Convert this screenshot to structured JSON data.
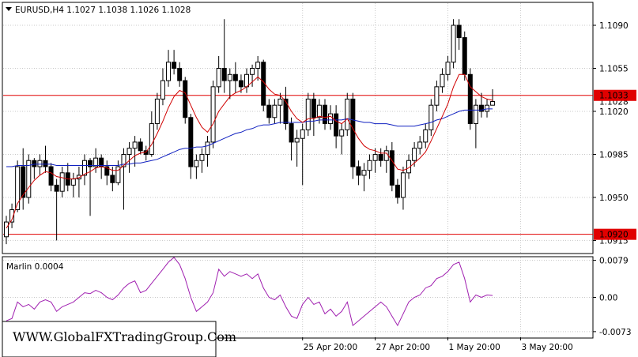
{
  "symbol_header": "EURUSD,H4  1.1027 1.1038 1.1026 1.1028",
  "indicator_label": "Marlin 0.0004",
  "watermark": "WWW.GlobalFXTradingGroup.Com",
  "colors": {
    "background": "#ffffff",
    "grid": "#c8c8c8",
    "candle": "#000000",
    "ma_fast": "#d00000",
    "ma_slow": "#1020c0",
    "level_line": "#e00000",
    "level_label_bg": "#e00000",
    "level_label_text": "#ffffff",
    "oscillator": "#a020b0"
  },
  "price_axis": {
    "ticks": [
      "1.1090",
      "1.1055",
      "1.1020",
      "1.0985",
      "1.0950",
      "1.0915"
    ],
    "range": [
      1.0905,
      1.1108
    ]
  },
  "levels": [
    {
      "price": 1.1033,
      "label": "1.1033"
    },
    {
      "price": 1.092,
      "label": "1.0920"
    }
  ],
  "current_price_label": "1.1028",
  "oscillator_axis": {
    "ticks": [
      "0.0079",
      "0.00",
      "-0.0073"
    ],
    "range": [
      -0.0085,
      0.0085
    ]
  },
  "time_axis": {
    "labels": [
      {
        "text": "25 Apr 20:00",
        "bar": 53
      },
      {
        "text": "27 Apr 20:00",
        "bar": 66
      },
      {
        "text": "1 May 20:00",
        "bar": 79
      },
      {
        "text": "3 May 20:00",
        "bar": 92
      }
    ]
  },
  "chart_data": {
    "type": "candlestick",
    "candles": [
      [
        1.0918,
        1.0935,
        1.0912,
        1.093
      ],
      [
        1.093,
        1.0945,
        1.0925,
        1.094
      ],
      [
        1.094,
        1.098,
        1.0938,
        1.0975
      ],
      [
        1.0975,
        1.099,
        1.094,
        1.095
      ],
      [
        1.095,
        1.0985,
        1.0945,
        1.098
      ],
      [
        1.098,
        1.0982,
        1.0965,
        1.0975
      ],
      [
        1.0975,
        1.0985,
        1.0968,
        1.098
      ],
      [
        1.098,
        1.0992,
        1.097,
        1.0975
      ],
      [
        1.0975,
        1.0978,
        1.0955,
        1.096
      ],
      [
        1.096,
        1.0965,
        1.0915,
        1.0955
      ],
      [
        1.0955,
        1.0975,
        1.095,
        1.097
      ],
      [
        1.097,
        1.0978,
        1.0955,
        1.096
      ],
      [
        1.096,
        1.097,
        1.095,
        1.0965
      ],
      [
        1.0965,
        1.0975,
        1.095,
        1.0968
      ],
      [
        1.0968,
        1.0985,
        1.096,
        1.098
      ],
      [
        1.098,
        1.0982,
        1.0935,
        1.0975
      ],
      [
        1.0975,
        1.099,
        1.097,
        1.0982
      ],
      [
        1.0982,
        1.0985,
        1.0965,
        1.0975
      ],
      [
        1.0975,
        1.098,
        1.096,
        1.0968
      ],
      [
        1.0968,
        1.0975,
        1.0955,
        1.0962
      ],
      [
        1.0962,
        1.098,
        1.096,
        1.0975
      ],
      [
        1.0975,
        1.099,
        1.094,
        1.0985
      ],
      [
        1.0985,
        1.0995,
        1.097,
        1.099
      ],
      [
        1.099,
        1.1,
        1.0975,
        1.0995
      ],
      [
        1.0995,
        1.0998,
        1.0985,
        1.0988
      ],
      [
        1.0988,
        1.0992,
        1.098,
        1.0985
      ],
      [
        1.0985,
        1.102,
        1.0983,
        1.101
      ],
      [
        1.101,
        1.1035,
        1.1005,
        1.103
      ],
      [
        1.103,
        1.1055,
        1.1025,
        1.1045
      ],
      [
        1.1045,
        1.107,
        1.104,
        1.106
      ],
      [
        1.106,
        1.107,
        1.105,
        1.1055
      ],
      [
        1.1055,
        1.106,
        1.104,
        1.1045
      ],
      [
        1.1045,
        1.1048,
        1.101,
        1.1015
      ],
      [
        1.1015,
        1.1018,
        1.0965,
        1.0975
      ],
      [
        1.0975,
        1.0985,
        1.0965,
        1.098
      ],
      [
        1.098,
        1.099,
        1.097,
        1.0985
      ],
      [
        1.0985,
        1.1,
        1.0975,
        1.0995
      ],
      [
        1.0995,
        1.1045,
        1.099,
        1.104
      ],
      [
        1.104,
        1.1065,
        1.1035,
        1.1055
      ],
      [
        1.1055,
        1.1095,
        1.1035,
        1.1045
      ],
      [
        1.1045,
        1.1055,
        1.103,
        1.105
      ],
      [
        1.105,
        1.106,
        1.1035,
        1.1045
      ],
      [
        1.1045,
        1.105,
        1.1035,
        1.104
      ],
      [
        1.104,
        1.1055,
        1.1035,
        1.105
      ],
      [
        1.105,
        1.1058,
        1.104,
        1.1055
      ],
      [
        1.1055,
        1.1065,
        1.1045,
        1.106
      ],
      [
        1.106,
        1.1062,
        1.102,
        1.1025
      ],
      [
        1.1025,
        1.103,
        1.101,
        1.1015
      ],
      [
        1.1015,
        1.103,
        1.101,
        1.1025
      ],
      [
        1.1025,
        1.1035,
        1.101,
        1.103
      ],
      [
        1.103,
        1.104,
        1.1005,
        1.101
      ],
      [
        1.101,
        1.1015,
        1.098,
        1.0995
      ],
      [
        1.0995,
        1.1005,
        1.0975,
        1.0998
      ],
      [
        1.0998,
        1.101,
        1.096,
        1.1005
      ],
      [
        1.1005,
        1.1035,
        1.1,
        1.103
      ],
      [
        1.103,
        1.1035,
        1.1,
        1.1015
      ],
      [
        1.1015,
        1.103,
        1.101,
        1.1025
      ],
      [
        1.1025,
        1.103,
        1.1005,
        1.101
      ],
      [
        1.101,
        1.1025,
        1.1005,
        1.1018
      ],
      [
        1.1018,
        1.1025,
        1.099,
        1.1
      ],
      [
        1.1,
        1.101,
        1.0985,
        1.1005
      ],
      [
        1.1005,
        1.1035,
        1.1,
        1.103
      ],
      [
        1.103,
        1.1035,
        1.0965,
        1.0975
      ],
      [
        1.0975,
        1.098,
        1.096,
        1.0968
      ],
      [
        1.0968,
        1.0978,
        1.0955,
        1.0972
      ],
      [
        1.0972,
        1.0985,
        1.0965,
        1.098
      ],
      [
        1.098,
        1.099,
        1.097,
        1.0985
      ],
      [
        1.0985,
        1.099,
        1.0975,
        1.098
      ],
      [
        1.098,
        1.0992,
        1.097,
        1.0988
      ],
      [
        1.0988,
        1.0995,
        1.0955,
        1.096
      ],
      [
        1.096,
        1.0965,
        1.0945,
        1.095
      ],
      [
        1.095,
        1.0975,
        1.094,
        1.097
      ],
      [
        1.097,
        1.0985,
        1.0965,
        1.098
      ],
      [
        1.098,
        1.0995,
        1.0975,
        1.099
      ],
      [
        1.099,
        1.1,
        1.0985,
        1.0995
      ],
      [
        1.0995,
        1.101,
        1.099,
        1.1005
      ],
      [
        1.1005,
        1.103,
        1.1,
        1.1025
      ],
      [
        1.1025,
        1.1045,
        1.102,
        1.104
      ],
      [
        1.104,
        1.1055,
        1.1035,
        1.105
      ],
      [
        1.105,
        1.1065,
        1.1045,
        1.106
      ],
      [
        1.106,
        1.1095,
        1.1055,
        1.109
      ],
      [
        1.109,
        1.1095,
        1.107,
        1.108
      ],
      [
        1.108,
        1.1085,
        1.1045,
        1.105
      ],
      [
        1.105,
        1.1055,
        1.1005,
        1.101
      ],
      [
        1.101,
        1.103,
        1.099,
        1.1025
      ],
      [
        1.1025,
        1.1035,
        1.1015,
        1.102
      ],
      [
        1.102,
        1.103,
        1.1015,
        1.1025
      ],
      [
        1.1025,
        1.1038,
        1.1026,
        1.1028
      ]
    ],
    "ma_fast": [
      1.0925,
      1.0932,
      1.0945,
      1.0952,
      1.0958,
      1.0964,
      1.0968,
      1.0971,
      1.097,
      1.0967,
      1.0966,
      1.0965,
      1.0965,
      1.0966,
      1.0969,
      1.0971,
      1.0974,
      1.0975,
      1.0974,
      1.0972,
      1.0972,
      1.0976,
      1.098,
      1.0984,
      1.0986,
      1.0987,
      1.0993,
      1.1002,
      1.1012,
      1.1023,
      1.1032,
      1.1037,
      1.1035,
      1.1025,
      1.1015,
      1.1007,
      1.1003,
      1.101,
      1.102,
      1.1026,
      1.1032,
      1.1035,
      1.1037,
      1.104,
      1.1044,
      1.1048,
      1.1044,
      1.1038,
      1.1034,
      1.1033,
      1.1028,
      1.102,
      1.1014,
      1.1011,
      1.1014,
      1.1014,
      1.1016,
      1.1015,
      1.1016,
      1.1012,
      1.101,
      1.1014,
      1.1006,
      1.0998,
      1.0992,
      1.0989,
      1.0988,
      1.0986,
      1.0986,
      1.098,
      1.0973,
      1.0972,
      1.0974,
      1.0978,
      1.0982,
      1.0987,
      1.0996,
      1.1006,
      1.1016,
      1.1026,
      1.104,
      1.105,
      1.105,
      1.104,
      1.1036,
      1.1032,
      1.103,
      1.1029
    ],
    "ma_slow": [
      1.0975,
      1.0975,
      1.0976,
      1.0976,
      1.0976,
      1.0977,
      1.0977,
      1.0977,
      1.0977,
      1.0976,
      1.0976,
      1.0976,
      1.0976,
      1.0976,
      1.0976,
      1.0976,
      1.0976,
      1.0976,
      1.0976,
      1.0976,
      1.0976,
      1.0977,
      1.0977,
      1.0978,
      1.0978,
      1.0979,
      1.098,
      1.0981,
      1.0983,
      1.0985,
      1.0987,
      1.0989,
      1.099,
      1.099,
      1.0991,
      1.0991,
      1.0992,
      1.0994,
      1.0996,
      1.0998,
      1.1,
      1.1002,
      1.1003,
      1.1005,
      1.1006,
      1.1008,
      1.1009,
      1.1009,
      1.101,
      1.1011,
      1.1011,
      1.1011,
      1.1011,
      1.1011,
      1.1012,
      1.1012,
      1.1013,
      1.1013,
      1.1013,
      1.1013,
      1.1013,
      1.1014,
      1.1013,
      1.1012,
      1.1011,
      1.1011,
      1.101,
      1.101,
      1.101,
      1.1009,
      1.1008,
      1.1008,
      1.1008,
      1.1008,
      1.1009,
      1.101,
      1.1011,
      1.1013,
      1.1014,
      1.1016,
      1.1018,
      1.102,
      1.1021,
      1.1021,
      1.1021,
      1.1021,
      1.1022,
      1.1022
    ],
    "oscillator": [
      -0.005,
      -0.0045,
      -0.001,
      -0.002,
      -0.0015,
      -0.0025,
      -0.001,
      -0.0005,
      -0.001,
      -0.003,
      -0.002,
      -0.0015,
      -0.001,
      0.0,
      0.001,
      0.0008,
      0.0015,
      0.001,
      0.0,
      -0.0005,
      0.0005,
      0.002,
      0.003,
      0.0035,
      0.001,
      0.0015,
      0.003,
      0.0045,
      0.006,
      0.0075,
      0.0085,
      0.007,
      0.004,
      0.0,
      -0.003,
      -0.002,
      -0.001,
      0.001,
      0.006,
      0.0045,
      0.0055,
      0.005,
      0.0045,
      0.005,
      0.004,
      0.005,
      0.002,
      0.0,
      -0.0005,
      0.0005,
      -0.002,
      -0.004,
      -0.0045,
      -0.0015,
      0.0,
      -0.0015,
      -0.001,
      -0.0035,
      -0.0025,
      -0.004,
      -0.003,
      -0.001,
      -0.006,
      -0.005,
      -0.004,
      -0.003,
      -0.002,
      -0.001,
      -0.002,
      -0.004,
      -0.006,
      -0.0035,
      -0.001,
      0.0,
      0.0005,
      0.002,
      0.0025,
      0.004,
      0.0045,
      0.0055,
      0.007,
      0.0075,
      0.004,
      -0.001,
      0.0005,
      0.0,
      0.0005,
      0.0004
    ]
  }
}
